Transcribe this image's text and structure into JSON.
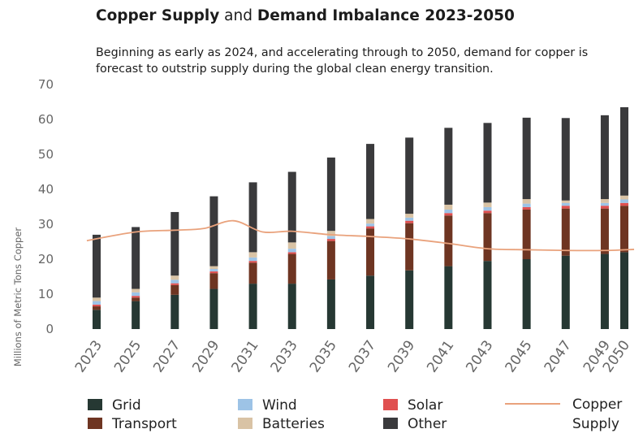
{
  "title": {
    "part1": "Copper Supply",
    "part2": "and",
    "part3": "Demand Imbalance 2023-2050"
  },
  "subtitle": "Beginning as early as 2024, and accelerating through to 2050, demand for copper is forecast to outstrip supply during the global clean energy transition.",
  "chart_data": {
    "type": "bar",
    "stacked": true,
    "categories": [
      "2023",
      "2025",
      "2027",
      "2029",
      "2031",
      "2033",
      "2035",
      "2037",
      "2039",
      "2041",
      "2043",
      "2045",
      "2047",
      "2049",
      "2050"
    ],
    "series": [
      {
        "name": "Grid",
        "color": "#263833",
        "values": [
          5.5,
          8,
          9.8,
          11.5,
          13,
          13,
          14.2,
          15.3,
          16.8,
          18,
          19.5,
          20,
          21,
          21.5,
          22
        ]
      },
      {
        "name": "Transport",
        "color": "#6e3522",
        "values": [
          1,
          1,
          2.8,
          4.5,
          6,
          8.5,
          11,
          13.5,
          13.5,
          14.5,
          13.7,
          14.2,
          13.5,
          13,
          13.3
        ]
      },
      {
        "name": "Solar",
        "color": "#e05050",
        "values": [
          0.5,
          0.5,
          0.5,
          0.5,
          0.5,
          0.5,
          0.6,
          0.6,
          0.7,
          0.7,
          0.7,
          0.7,
          0.8,
          0.8,
          0.8
        ]
      },
      {
        "name": "Wind",
        "color": "#9dc3e6",
        "values": [
          1,
          1,
          1,
          0.7,
          1,
          1,
          0.8,
          0.8,
          0.9,
          1,
          1,
          1,
          0.8,
          0.8,
          1
        ]
      },
      {
        "name": "Batteries",
        "color": "#d9c3a5",
        "values": [
          1,
          1,
          1.2,
          0.8,
          1.5,
          1.8,
          1.5,
          1.3,
          1.1,
          1.4,
          1.3,
          1.3,
          0.7,
          1.1,
          1.1
        ]
      },
      {
        "name": "Other",
        "color": "#3a3a3c",
        "values": [
          18,
          17.7,
          18.2,
          20,
          20,
          20.2,
          21,
          21.5,
          21.8,
          22,
          22.8,
          23.3,
          23.6,
          24,
          25.3
        ]
      }
    ],
    "line_series": {
      "name": "Copper Supply",
      "color": "#e9a27c",
      "x": [
        2022.5,
        2025,
        2027,
        2028.5,
        2030,
        2031.5,
        2033,
        2035,
        2037,
        2039,
        2041,
        2043,
        2045,
        2047,
        2049,
        2050.5
      ],
      "values": [
        25.3,
        27.8,
        28.3,
        28.8,
        31,
        27.8,
        28,
        27,
        26.5,
        25.8,
        24.5,
        23,
        22.7,
        22.5,
        22.5,
        22.8
      ]
    },
    "ylabel": "Millions of Metric Tons Copper",
    "ylim": [
      0,
      70
    ],
    "yticks": [
      0,
      10,
      20,
      30,
      40,
      50,
      60,
      70
    ],
    "grid": false,
    "legend": [
      {
        "label": "Grid",
        "color": "#263833",
        "kind": "box"
      },
      {
        "label": "Transport",
        "color": "#6e3522",
        "kind": "box"
      },
      {
        "label": "Wind",
        "color": "#9dc3e6",
        "kind": "box"
      },
      {
        "label": "Batteries",
        "color": "#d9c3a5",
        "kind": "box"
      },
      {
        "label": "Solar",
        "color": "#e05050",
        "kind": "box"
      },
      {
        "label": "Other",
        "color": "#3a3a3c",
        "kind": "box"
      },
      {
        "label_lines": [
          "Copper",
          "Supply"
        ],
        "color": "#e9a27c",
        "kind": "line"
      }
    ],
    "legend_position": "bottom"
  }
}
